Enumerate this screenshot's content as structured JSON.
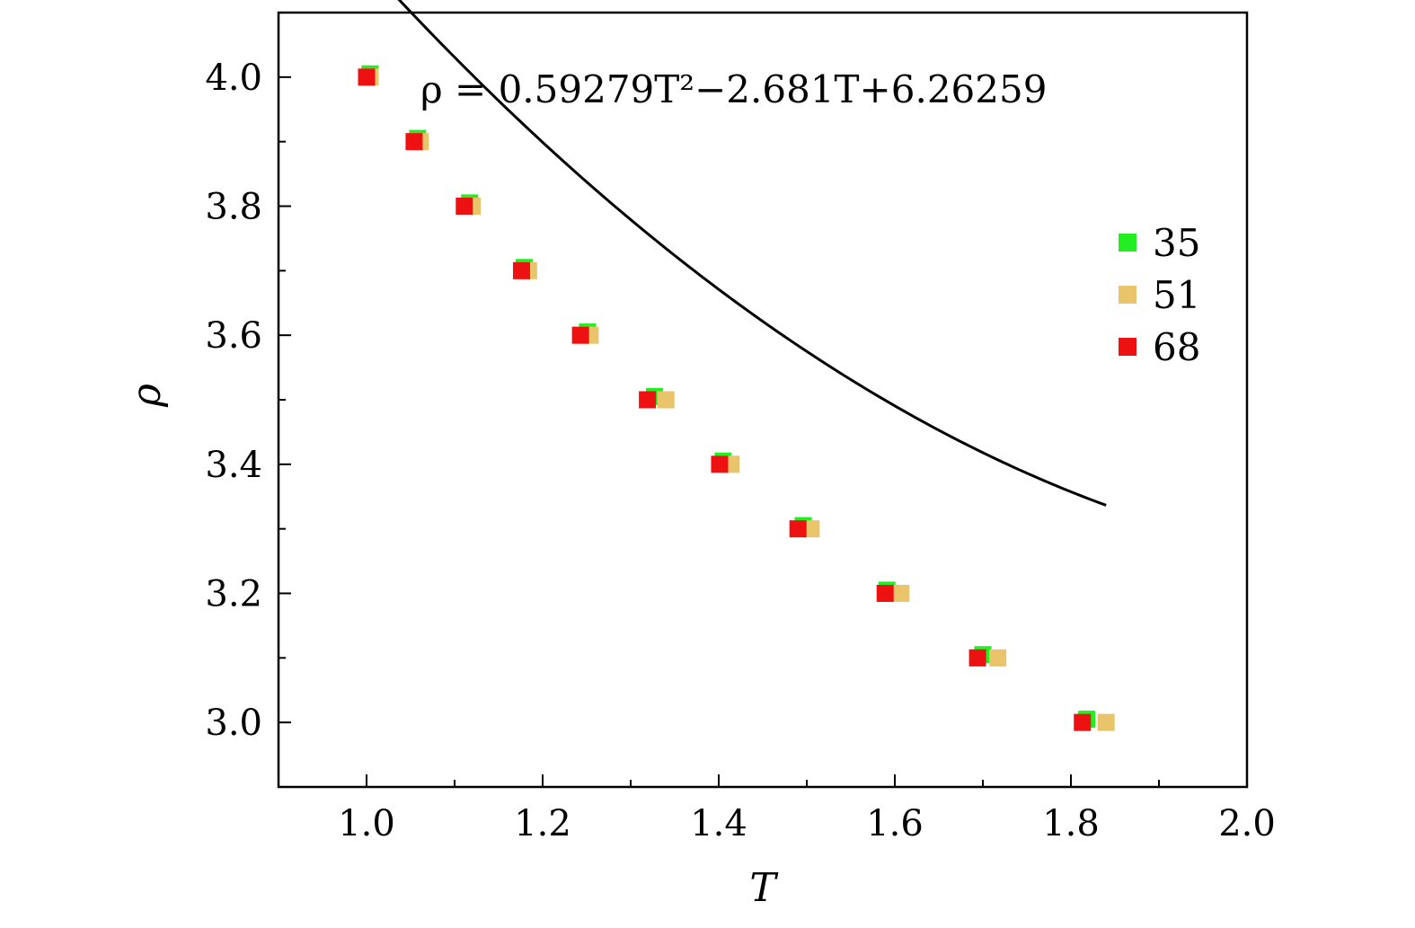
{
  "chart_data": {
    "type": "scatter",
    "xlabel": "T",
    "ylabel": "ρ",
    "xlim": [
      0.9,
      2.0
    ],
    "ylim": [
      2.9,
      4.1
    ],
    "x_ticks": [
      "1.0",
      "1.2",
      "1.4",
      "1.6",
      "1.8",
      "2.0"
    ],
    "x_tick_values": [
      1.0,
      1.2,
      1.4,
      1.6,
      1.8,
      2.0
    ],
    "y_ticks": [
      "3.0",
      "3.2",
      "3.4",
      "3.6",
      "3.8",
      "4.0"
    ],
    "y_tick_values": [
      3.0,
      3.2,
      3.4,
      3.6,
      3.8,
      4.0
    ],
    "grid": false,
    "legend_position": "right",
    "annotation": {
      "text": "ρ = 0.59279T²−2.681T+6.26259"
    },
    "fit": {
      "a": 0.59279,
      "b": -2.681,
      "c": 6.26259,
      "x_range": [
        1.0,
        1.84
      ]
    },
    "series": [
      {
        "name": "35",
        "color": "#22ee22",
        "x": [
          1.004,
          1.058,
          1.117,
          1.179,
          1.251,
          1.327,
          1.405,
          1.496,
          1.591,
          1.7,
          1.818
        ],
        "y": [
          4.005,
          3.905,
          3.805,
          3.705,
          3.605,
          3.505,
          3.405,
          3.305,
          3.205,
          3.105,
          3.005
        ]
      },
      {
        "name": "51",
        "color": "#e9c46a",
        "x": [
          1.004,
          1.061,
          1.12,
          1.184,
          1.254,
          1.34,
          1.414,
          1.505,
          1.607,
          1.717,
          1.84
        ],
        "y": [
          4.0,
          3.9,
          3.8,
          3.7,
          3.6,
          3.5,
          3.4,
          3.3,
          3.2,
          3.1,
          3.0
        ]
      },
      {
        "name": "68",
        "color": "#ee1111",
        "x": [
          1.0,
          1.054,
          1.111,
          1.176,
          1.243,
          1.319,
          1.401,
          1.49,
          1.589,
          1.694,
          1.813
        ],
        "y": [
          4.0,
          3.9,
          3.8,
          3.7,
          3.6,
          3.5,
          3.4,
          3.3,
          3.2,
          3.1,
          3.0
        ]
      }
    ]
  }
}
